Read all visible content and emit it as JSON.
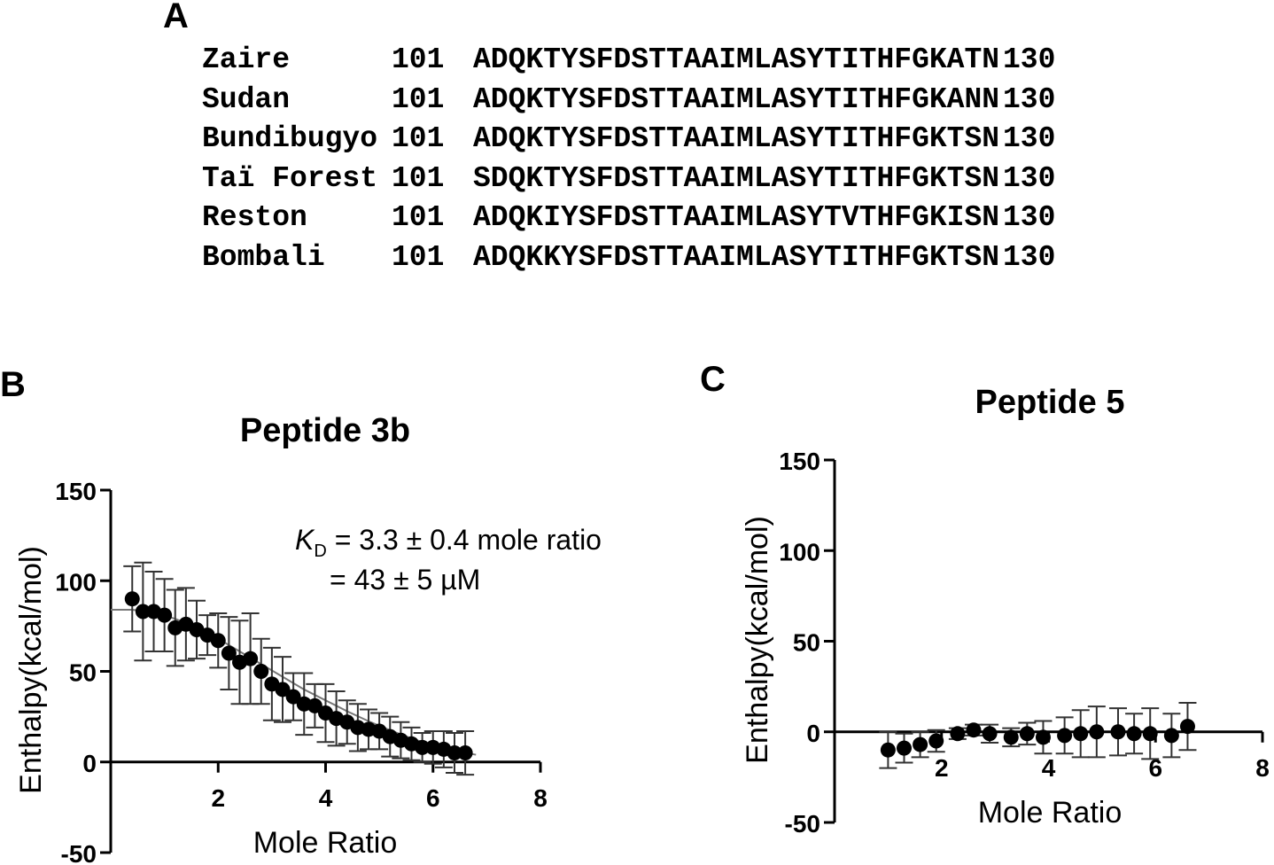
{
  "panels": {
    "a": "A",
    "b": "B",
    "c": "C"
  },
  "alignment": {
    "rows": [
      {
        "species": "Zaire",
        "start": "101",
        "sequence": "ADQKTYSFDSTTAAIMLASYTITHFGKATN",
        "end": "130"
      },
      {
        "species": "Sudan",
        "start": "101",
        "sequence": "ADQKTYSFDSTTAAIMLASYTITHFGKANN",
        "end": "130"
      },
      {
        "species": "Bundibugyo",
        "start": "101",
        "sequence": "ADQKTYSFDSTTAAIMLASYTITHFGKTSN",
        "end": "130"
      },
      {
        "species": "Taï Forest",
        "start": "101",
        "sequence": "SDQKTYSFDSTTAAIMLASYTITHFGKTSN",
        "end": "130"
      },
      {
        "species": "Reston",
        "start": "101",
        "sequence": "ADQKIYSFDSTTAAIMLASYTVTHFGKISN",
        "end": "130"
      },
      {
        "species": "Bombali",
        "start": "101",
        "sequence": "ADQKKYSFDSTTAAIMLASYTITHFGKTSN",
        "end": "130"
      }
    ]
  },
  "chart_data": [
    {
      "type": "scatter",
      "title": "Peptide 3b",
      "xlabel": "Mole Ratio",
      "ylabel": "Enthalpy(kcal/mol)",
      "xlim": [
        0,
        8
      ],
      "ylim": [
        -50,
        150
      ],
      "xticks": [
        2,
        4,
        6,
        8
      ],
      "yticks": [
        -50,
        0,
        50,
        100,
        150
      ],
      "annotation": {
        "kd_symbol": "K",
        "kd_subscript": "D",
        "line1": " = 3.3 ± 0.4 mole ratio",
        "line2": "= 43 ± 5 µM"
      },
      "fit": {
        "x": [
          0.0,
          0.4,
          0.8,
          1.2,
          1.6,
          2.0,
          2.4,
          2.8,
          3.2,
          3.6,
          4.0,
          4.4,
          4.8,
          5.2,
          5.6,
          6.0,
          6.4,
          6.8
        ],
        "y": [
          84,
          84,
          82.5,
          79,
          74,
          68,
          61,
          54,
          47,
          40,
          34,
          28,
          22.5,
          17.5,
          13,
          9,
          6,
          4
        ]
      },
      "series": [
        {
          "x": [
            0.4,
            0.6,
            0.8,
            1.0,
            1.2,
            1.4,
            1.6,
            1.8,
            2.0,
            2.2,
            2.4,
            2.6,
            2.8,
            3.0,
            3.2,
            3.4,
            3.6,
            3.8,
            4.0,
            4.2,
            4.4,
            4.6,
            4.8,
            5.0,
            5.2,
            5.4,
            5.6,
            5.8,
            6.0,
            6.2,
            6.4,
            6.6
          ],
          "y": [
            90,
            83,
            83,
            81,
            74,
            76,
            73,
            70,
            67,
            60,
            55,
            57,
            50,
            43,
            40,
            36,
            32,
            31,
            27,
            24,
            22,
            19,
            18,
            17,
            14,
            12,
            10,
            8,
            8,
            7,
            5,
            5
          ],
          "err": [
            18,
            27,
            22,
            20,
            21,
            20,
            16,
            11,
            15,
            20,
            23,
            25,
            18,
            20,
            18,
            13,
            17,
            12,
            16,
            15,
            12,
            13,
            11,
            10,
            11,
            10,
            9,
            8,
            9,
            10,
            11,
            12
          ]
        }
      ]
    },
    {
      "type": "scatter",
      "title": "Peptide 5",
      "xlabel": "Mole Ratio",
      "ylabel": "Enthalpy(kcal/mol)",
      "xlim": [
        0,
        8
      ],
      "ylim": [
        -50,
        150
      ],
      "xticks": [
        2,
        4,
        6,
        8
      ],
      "yticks": [
        -50,
        0,
        50,
        100,
        150
      ],
      "series": [
        {
          "x": [
            1.0,
            1.3,
            1.6,
            1.9,
            2.3,
            2.6,
            2.9,
            3.3,
            3.6,
            3.9,
            4.3,
            4.6,
            4.9,
            5.3,
            5.6,
            5.9,
            6.3,
            6.6
          ],
          "y": [
            -10,
            -9,
            -7,
            -5,
            -1,
            1,
            -1,
            -3,
            -1,
            -3,
            -2,
            -1,
            0,
            0,
            -1,
            -1,
            -2,
            3
          ],
          "err": [
            10,
            8,
            7,
            6,
            3,
            3,
            5,
            5,
            6,
            9,
            10,
            13,
            14,
            13,
            11,
            14,
            12,
            13
          ]
        }
      ]
    }
  ]
}
